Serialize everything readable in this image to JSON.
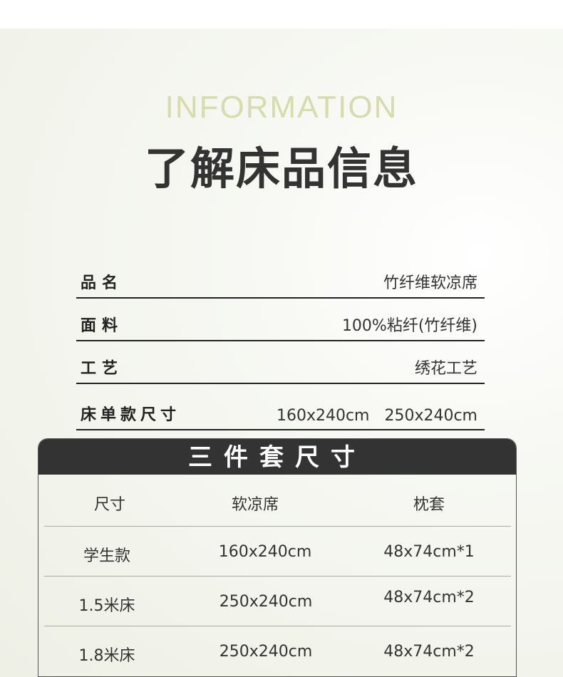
{
  "header": {
    "english": "INFORMATION",
    "title": "了解床品信息"
  },
  "info": [
    {
      "label": "品名",
      "value": "竹纤维软凉席"
    },
    {
      "label": "面料",
      "value": "100%粘纤(竹纤维)"
    },
    {
      "label": "工艺",
      "value": "绣花工艺"
    },
    {
      "label": "床单款尺寸",
      "value": "160x240cm   250x240cm"
    }
  ],
  "size_table": {
    "title": "三件套尺寸",
    "columns": [
      "尺寸",
      "软凉席",
      "枕套"
    ],
    "rows": [
      [
        "学生款",
        "160x240cm",
        "48x74cm*1"
      ],
      [
        "1.5米床",
        "250x240cm",
        "48x74cm*2"
      ],
      [
        "1.8米床",
        "250x240cm",
        "48x74cm*2"
      ]
    ]
  },
  "colors": {
    "accent": "#d6dcaa",
    "dark": "#333333"
  }
}
